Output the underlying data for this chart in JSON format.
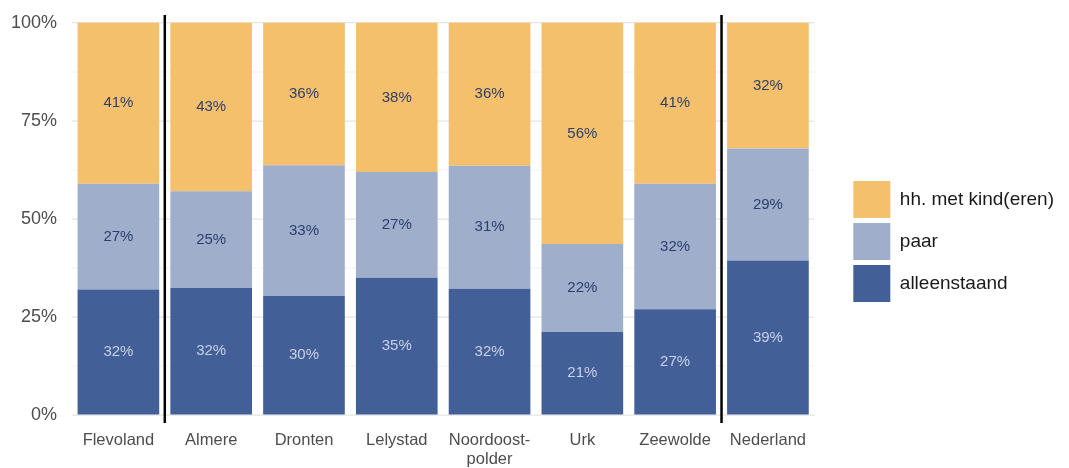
{
  "chart_data": {
    "type": "bar",
    "stacked": true,
    "categories": [
      "Flevoland",
      "Almere",
      "Dronten",
      "Lelystad",
      "Noordoost-\npolder",
      "Urk",
      "Zeewolde",
      "Nederland"
    ],
    "series": [
      {
        "name": "alleenstaand",
        "color": "#425f98",
        "values": [
          32,
          32.4,
          30.4,
          35,
          32.2,
          21.2,
          27,
          39.4
        ],
        "value_labels": [
          "32%",
          "32%",
          "30%",
          "35%",
          "32%",
          "21%",
          "27%",
          "39%"
        ]
      },
      {
        "name": "paar",
        "color": "#9eaecb",
        "values": [
          27,
          24.7,
          33.3,
          27,
          31.4,
          22.4,
          32,
          28.6
        ],
        "value_labels": [
          "27%",
          "25%",
          "33%",
          "27%",
          "31%",
          "22%",
          "32%",
          "29%"
        ]
      },
      {
        "name": "hh. met kind(eren)",
        "color": "#f5c06c",
        "values": [
          41,
          42.9,
          36.3,
          38,
          36.4,
          56.4,
          41,
          32
        ],
        "value_labels": [
          "41%",
          "43%",
          "36%",
          "38%",
          "36%",
          "56%",
          "41%",
          "32%"
        ]
      }
    ],
    "ylim": [
      -2,
      102
    ],
    "yticks": [
      {
        "value": 0,
        "label": "0%"
      },
      {
        "value": 12.5,
        "label": null
      },
      {
        "value": 25,
        "label": "25%"
      },
      {
        "value": 37.5,
        "label": null
      },
      {
        "value": 50,
        "label": "50%"
      },
      {
        "value": 62.5,
        "label": null
      },
      {
        "value": 75,
        "label": "75%"
      },
      {
        "value": 87.5,
        "label": null
      },
      {
        "value": 100,
        "label": "100%"
      }
    ],
    "grid": "y",
    "legend": "right"
  }
}
